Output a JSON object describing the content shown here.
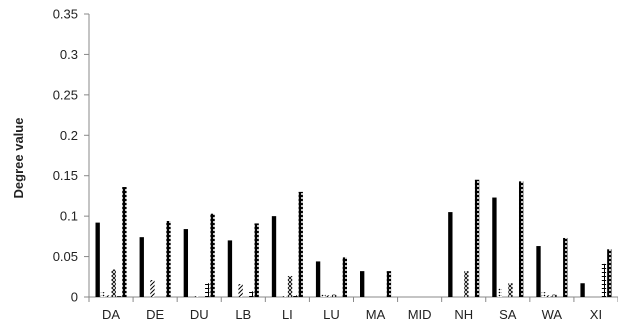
{
  "chart_data": {
    "type": "bar",
    "title": "",
    "xlabel": "",
    "ylabel": "Degree value",
    "ylim": [
      0,
      0.35
    ],
    "yticks": [
      "0",
      "0.05",
      "0.1",
      "0.15",
      "0.2",
      "0.25",
      "0.3",
      "0.35"
    ],
    "grid": false,
    "legend": "none",
    "categories": [
      "DA",
      "DE",
      "DU",
      "LB",
      "LI",
      "LU",
      "MA",
      "MID",
      "NH",
      "SA",
      "WA",
      "XI"
    ],
    "series": [
      {
        "pattern": "solid",
        "values": [
          0.092,
          0.074,
          0.084,
          0.07,
          0.1,
          0.044,
          0.032,
          0.0,
          0.105,
          0.123,
          0.063,
          0.017
        ]
      },
      {
        "pattern": "dots-fine",
        "values": [
          0.006,
          0.0,
          0.0,
          0.0,
          0.0,
          0.003,
          0.0,
          0.0,
          0.0,
          0.011,
          0.006,
          0.0
        ]
      },
      {
        "pattern": "diagonal",
        "values": [
          0.002,
          0.021,
          0.001,
          0.016,
          0.001,
          0.002,
          0.0,
          0.0,
          0.0,
          0.0,
          0.002,
          0.0
        ]
      },
      {
        "pattern": "crosshatch",
        "values": [
          0.034,
          0.0,
          0.0,
          0.0,
          0.026,
          0.003,
          0.0,
          0.0,
          0.032,
          0.017,
          0.003,
          0.0
        ]
      },
      {
        "pattern": "grid",
        "values": [
          0.001,
          0.0,
          0.017,
          0.007,
          0.002,
          0.0,
          0.0,
          0.0,
          0.0,
          0.0,
          0.0,
          0.041
        ]
      },
      {
        "pattern": "dots-bold",
        "values": [
          0.136,
          0.094,
          0.103,
          0.091,
          0.13,
          0.049,
          0.032,
          0.0,
          0.145,
          0.143,
          0.073,
          0.059
        ]
      }
    ],
    "colors": {
      "bar": "#000000",
      "axis": "#888888",
      "text": "#222222"
    }
  }
}
